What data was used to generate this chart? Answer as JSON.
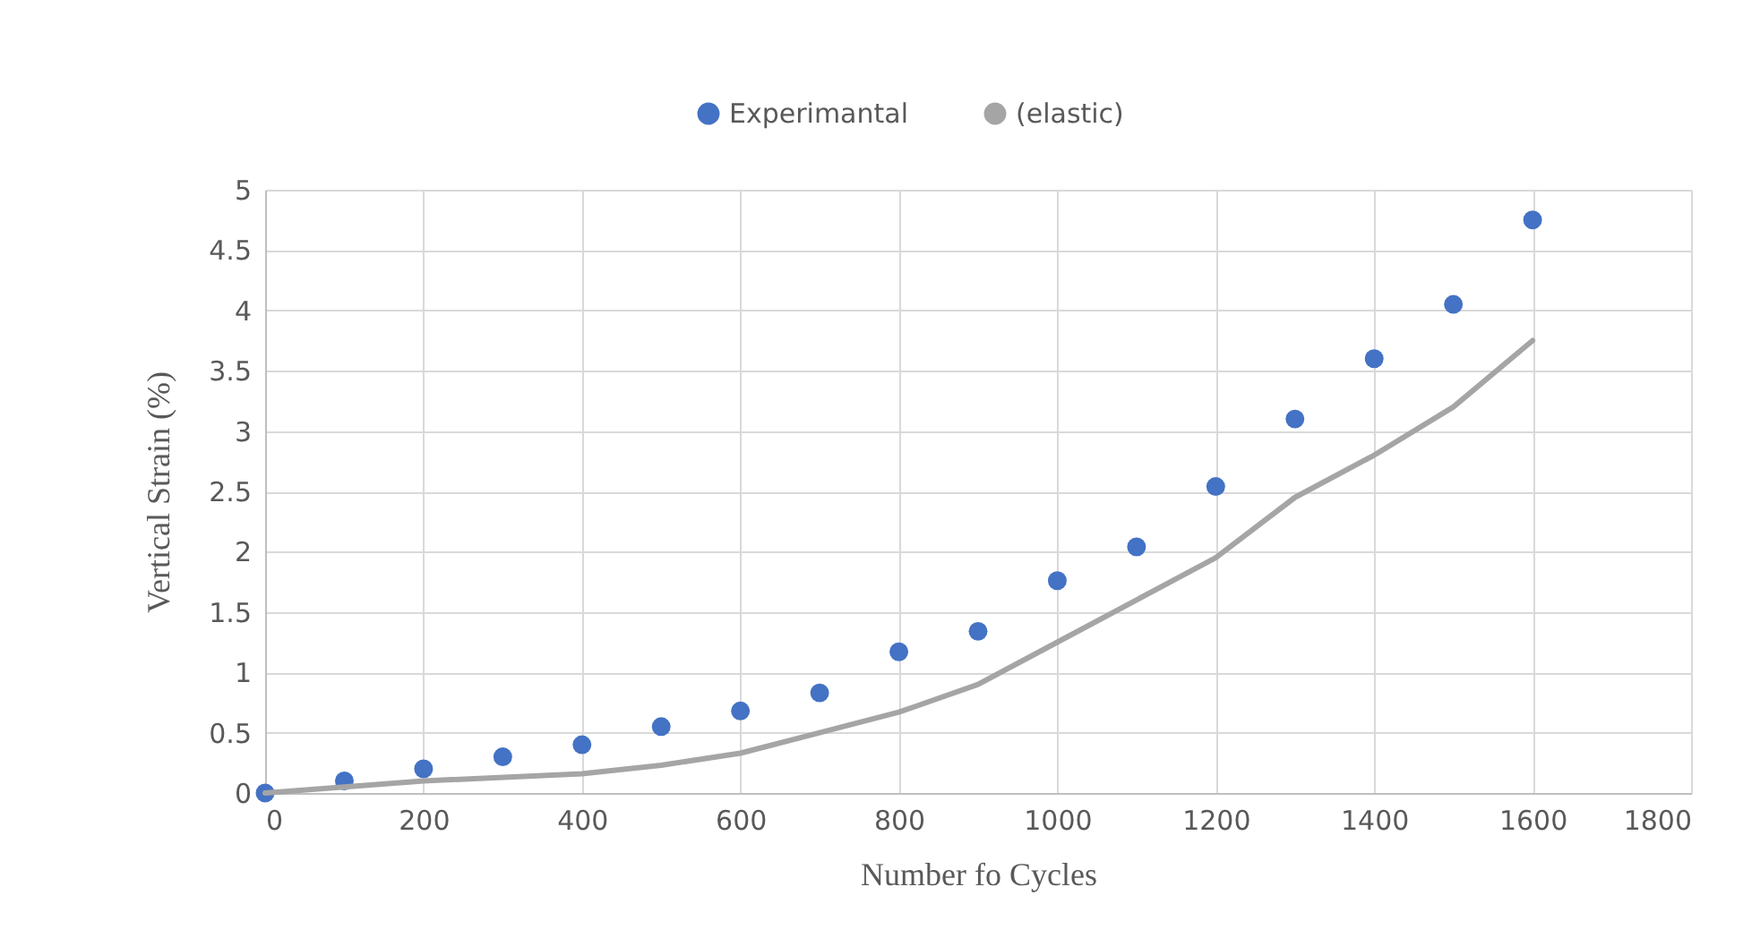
{
  "chart_data": {
    "type": "scatter",
    "xlabel": "Number fo Cycles",
    "ylabel": "Vertical Strain (%)",
    "xlim": [
      0,
      1800
    ],
    "xticks": [
      0,
      200,
      400,
      600,
      800,
      1000,
      1200,
      1400,
      1600,
      1800
    ],
    "ylim": [
      0,
      5
    ],
    "yticks": [
      0,
      0.5,
      1,
      1.5,
      2,
      2.5,
      3,
      3.5,
      4,
      4.5,
      5
    ],
    "grid": true,
    "legend": "top",
    "series": [
      {
        "name": "Experimantal",
        "type": "scatter",
        "marker": "circle",
        "color": "#4472c4",
        "x": [
          0,
          100,
          200,
          300,
          400,
          500,
          600,
          700,
          800,
          900,
          1000,
          1100,
          1200,
          1300,
          1400,
          1500,
          1600
        ],
        "values": [
          0,
          0.1,
          0.2,
          0.3,
          0.4,
          0.55,
          0.68,
          0.83,
          1.17,
          1.34,
          1.76,
          2.04,
          2.54,
          3.1,
          3.6,
          4.05,
          4.75
        ]
      },
      {
        "name": "(elastic)",
        "type": "line",
        "marker": "none",
        "line_style": "solid",
        "color": "#a5a5a5",
        "x": [
          0,
          200,
          400,
          500,
          600,
          700,
          800,
          900,
          1000,
          1100,
          1200,
          1300,
          1400,
          1500,
          1600
        ],
        "values": [
          0,
          0.1,
          0.16,
          0.23,
          0.33,
          0.5,
          0.67,
          0.9,
          1.25,
          1.6,
          1.95,
          2.45,
          2.8,
          3.2,
          3.75
        ]
      }
    ]
  }
}
